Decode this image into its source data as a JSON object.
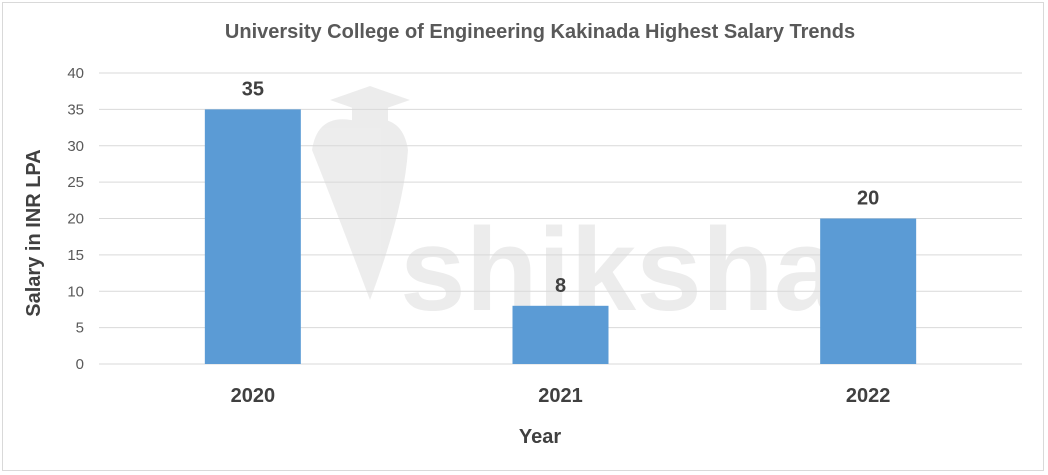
{
  "watermark": {
    "text": "shiksha",
    "icon": "graduation-cap-pen-icon"
  },
  "chart_data": {
    "type": "bar",
    "title": "University College of Engineering Kakinada Highest Salary Trends",
    "xlabel": "Year",
    "ylabel": "Salary in INR LPA",
    "categories": [
      "2020",
      "2021",
      "2022"
    ],
    "values": [
      35,
      8,
      20
    ],
    "data_labels": [
      "35",
      "8",
      "20"
    ],
    "ylim": [
      0,
      40
    ],
    "yticks": [
      0,
      5,
      10,
      15,
      20,
      25,
      30,
      35,
      40
    ],
    "grid": true,
    "legend": "none",
    "colors": {
      "bar": "#5b9bd5",
      "grid": "#d9d9d9",
      "text": "#595959"
    }
  }
}
